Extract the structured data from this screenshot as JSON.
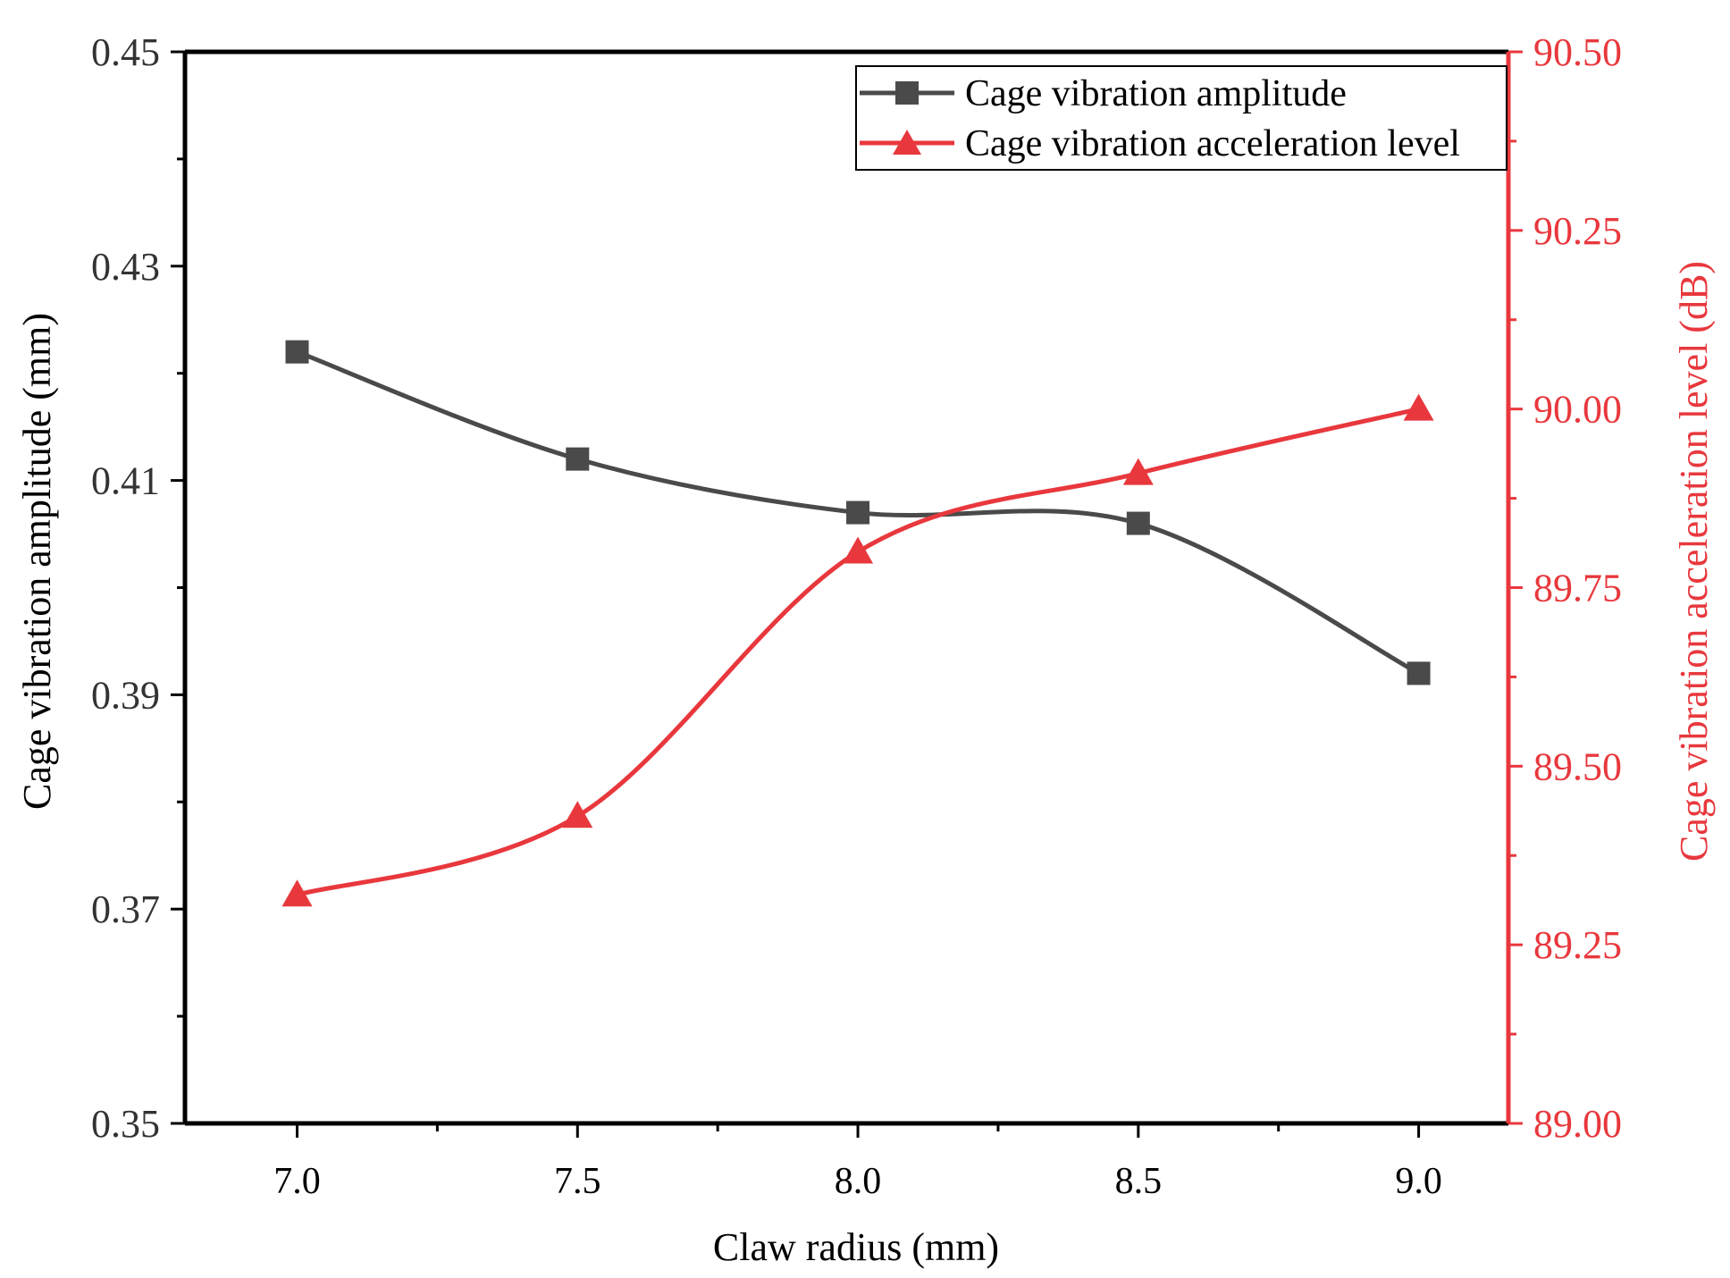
{
  "chart_data": {
    "type": "line",
    "x": [
      7.0,
      7.5,
      8.0,
      8.5,
      9.0
    ],
    "xlabel": "Claw radius (mm)",
    "xlim": [
      6.8,
      9.16
    ],
    "xticks": [
      7.0,
      7.5,
      8.0,
      8.5,
      9.0
    ],
    "xtick_labels": [
      "7.0",
      "7.5",
      "8.0",
      "8.5",
      "9.0"
    ],
    "xminor_ticks": [
      7.25,
      7.75,
      8.25,
      8.75
    ],
    "ylabel_left": "Cage vibration amplitude (mm)",
    "ylim_left": [
      0.35,
      0.45
    ],
    "yticks_left": [
      0.35,
      0.37,
      0.39,
      0.41,
      0.43,
      0.45
    ],
    "ytick_labels_left": [
      "0.35",
      "0.37",
      "0.39",
      "0.41",
      "0.43",
      "0.45"
    ],
    "yminor_ticks_left": [
      0.36,
      0.38,
      0.4,
      0.42,
      0.44
    ],
    "ylabel_right": "Cage vibration acceleration level (dB)",
    "ylim_right": [
      89.0,
      90.5
    ],
    "yticks_right": [
      89.0,
      89.25,
      89.5,
      89.75,
      90.0,
      90.25,
      90.5
    ],
    "ytick_labels_right": [
      "89.00",
      "89.25",
      "89.50",
      "89.75",
      "90.00",
      "90.25",
      "90.50"
    ],
    "yminor_ticks_right": [
      89.125,
      89.375,
      89.625,
      89.875,
      90.125,
      90.375
    ],
    "legend_position": "top-right",
    "series": [
      {
        "name": "Cage vibration amplitude",
        "axis": "left",
        "marker": "square",
        "color": "#4a4a4a",
        "values": [
          0.422,
          0.412,
          0.407,
          0.406,
          0.392
        ]
      },
      {
        "name": "Cage vibration acceleration level",
        "axis": "right",
        "marker": "triangle",
        "color": "#e8383d",
        "values": [
          89.32,
          89.43,
          89.8,
          89.91,
          90.0
        ]
      }
    ],
    "colors": {
      "left_axis": "#000000",
      "right_axis": "#e8383d",
      "tick_text_left": "#333333"
    }
  }
}
